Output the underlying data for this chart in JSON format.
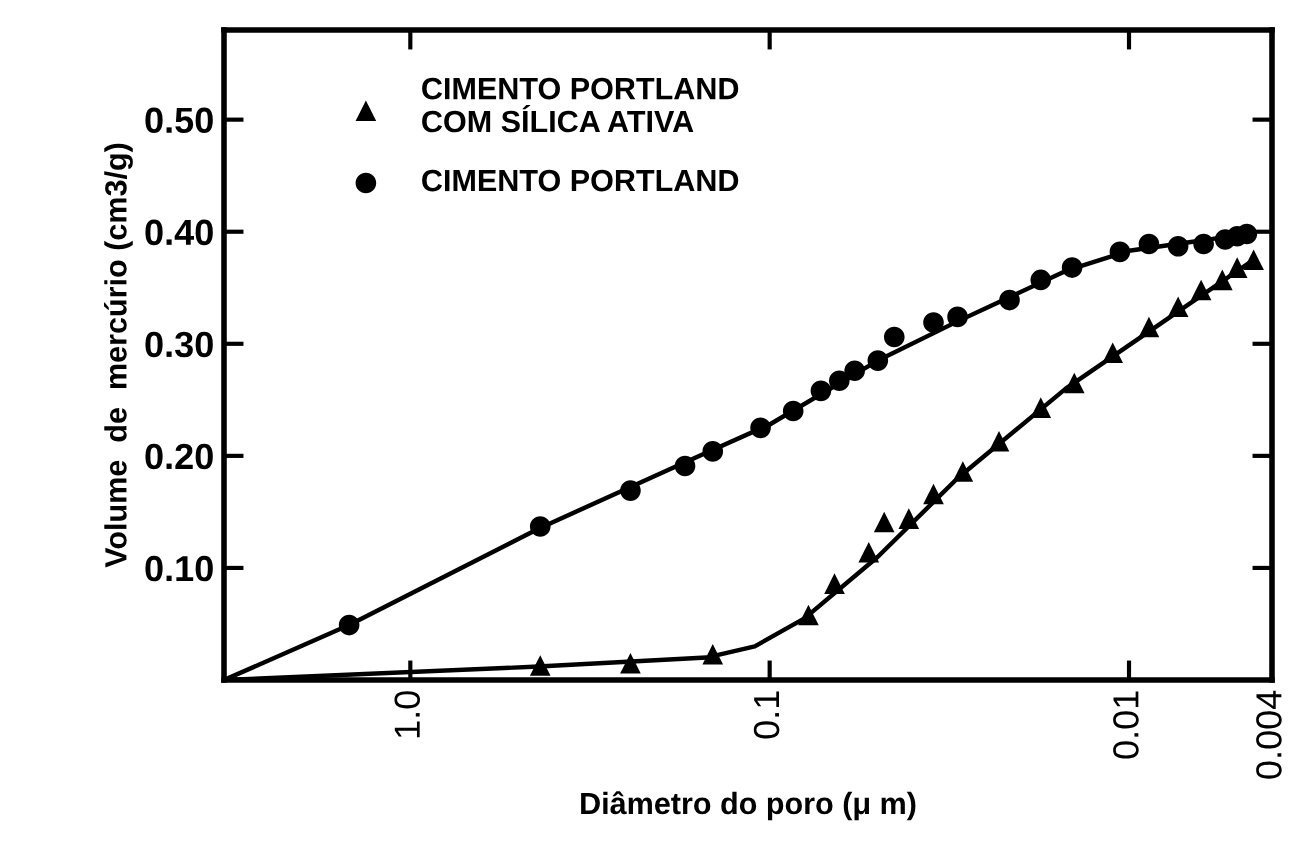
{
  "chart_data": {
    "type": "scatter",
    "xlabel": "Diâmetro do poro (μ m)",
    "ylabel": "Volume  de  mercúrio (cm3/g)",
    "log": "x",
    "xlim": [
      3.3,
      0.004
    ],
    "xticks": [
      {
        "value": 1,
        "label": "1.0"
      },
      0.1,
      0.01,
      0.004
    ],
    "ylim": [
      0,
      0.58
    ],
    "yticks": [
      {
        "value": 0.1,
        "label": "0.10"
      },
      {
        "value": 0.2,
        "label": "0.20"
      },
      {
        "value": 0.3,
        "label": "0.30"
      },
      {
        "value": 0.4,
        "label": "0.40"
      },
      {
        "value": 0.5,
        "label": "0.50"
      }
    ],
    "grid": false,
    "legend": "top left",
    "series": [
      {
        "name": "CIMENTO PORTLAND\nCOM SÍLICA ATIVA",
        "marker": "triangle",
        "color": "#000000",
        "x": [
          0.435,
          0.244,
          0.144,
          0.078,
          0.066,
          0.053,
          0.048,
          0.041,
          0.035,
          0.029,
          0.023,
          0.0176,
          0.0142,
          0.0111,
          0.0088,
          0.0073,
          0.0063,
          0.0055,
          0.005,
          0.0045
        ],
        "values": [
          0.013,
          0.015,
          0.023,
          0.058,
          0.086,
          0.114,
          0.141,
          0.144,
          0.166,
          0.186,
          0.213,
          0.243,
          0.265,
          0.292,
          0.315,
          0.333,
          0.348,
          0.357,
          0.368,
          0.375
        ]
      },
      {
        "name": "CIMENTO PORTLAND",
        "marker": "circle",
        "color": "#000000",
        "x": [
          1.48,
          0.435,
          0.244,
          0.172,
          0.144,
          0.106,
          0.086,
          0.072,
          0.064,
          0.058,
          0.05,
          0.045,
          0.035,
          0.03,
          0.0215,
          0.0176,
          0.0144,
          0.0106,
          0.0088,
          0.0073,
          0.0062,
          0.0054,
          0.005,
          0.0047
        ],
        "values": [
          0.049,
          0.137,
          0.169,
          0.191,
          0.204,
          0.225,
          0.24,
          0.258,
          0.267,
          0.276,
          0.285,
          0.306,
          0.319,
          0.324,
          0.339,
          0.357,
          0.368,
          0.382,
          0.389,
          0.387,
          0.389,
          0.393,
          0.396,
          0.398
        ]
      },
      {
        "type": "line",
        "marker": "none",
        "line_style": "solid",
        "color": "#000000",
        "x": [
          3.3,
          1.48,
          0.44,
          0.17,
          0.1,
          0.05,
          0.03,
          0.015,
          0.01,
          0.006,
          0.0045
        ],
        "values": [
          0,
          0.049,
          0.135,
          0.195,
          0.228,
          0.285,
          0.32,
          0.365,
          0.383,
          0.393,
          0.4
        ]
      },
      {
        "type": "line",
        "marker": "none",
        "line_style": "solid",
        "color": "#000000",
        "x": [
          3.3,
          0.44,
          0.15,
          0.11,
          0.08,
          0.05,
          0.03,
          0.015,
          0.008,
          0.0045
        ],
        "values": [
          0,
          0.012,
          0.02,
          0.03,
          0.055,
          0.11,
          0.18,
          0.26,
          0.32,
          0.375
        ]
      }
    ]
  }
}
